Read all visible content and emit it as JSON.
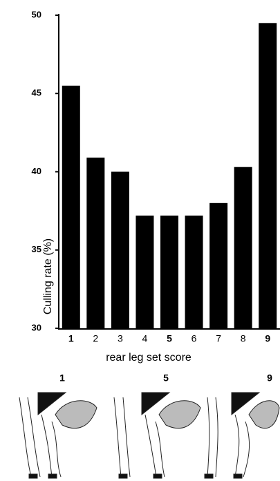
{
  "chart_data": {
    "type": "bar",
    "x_label": "rear leg set score",
    "y_label": "Culling rate (%)",
    "categories": [
      "1",
      "2",
      "3",
      "4",
      "5",
      "6",
      "7",
      "8",
      "9"
    ],
    "values": [
      45.5,
      40.9,
      40.0,
      37.2,
      37.2,
      37.2,
      38.0,
      40.3,
      49.5
    ],
    "color": "#000000",
    "ylim": [
      30,
      50
    ],
    "yticks": [
      30,
      35,
      40,
      45,
      50
    ]
  },
  "illustrations": {
    "labels": [
      "1",
      "5",
      "9"
    ]
  }
}
